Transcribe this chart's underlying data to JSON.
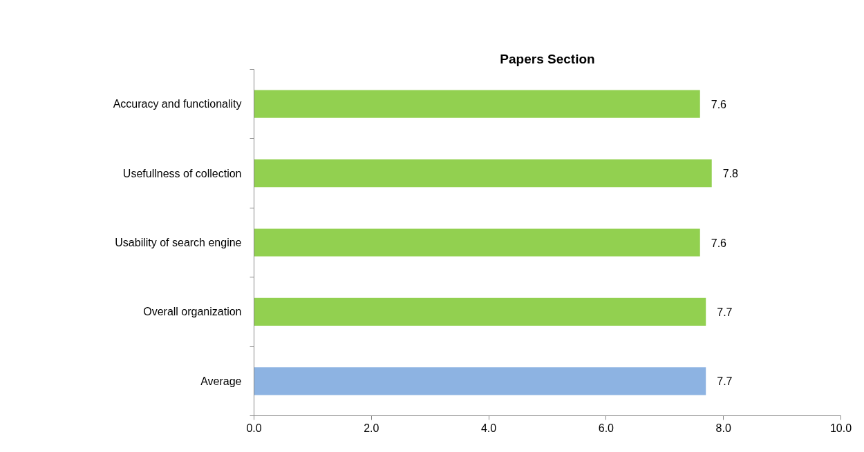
{
  "chart_data": {
    "type": "bar",
    "orientation": "horizontal",
    "title": "Papers Section",
    "categories": [
      "Accuracy and functionality",
      "Usefullness of collection",
      "Usability of search engine",
      "Overall organization",
      "Average"
    ],
    "values": [
      7.6,
      7.8,
      7.6,
      7.7,
      7.7
    ],
    "colors": [
      "#92d050",
      "#92d050",
      "#92d050",
      "#92d050",
      "#8db3e2"
    ],
    "xlim": [
      0,
      10
    ],
    "xticks": [
      {
        "value": 0,
        "label": "0.0"
      },
      {
        "value": 2,
        "label": "2.0"
      },
      {
        "value": 4,
        "label": "4.0"
      },
      {
        "value": 6,
        "label": "6.0"
      },
      {
        "value": 8,
        "label": "8.0"
      },
      {
        "value": 10,
        "label": "10.0"
      }
    ],
    "data_labels": true
  }
}
